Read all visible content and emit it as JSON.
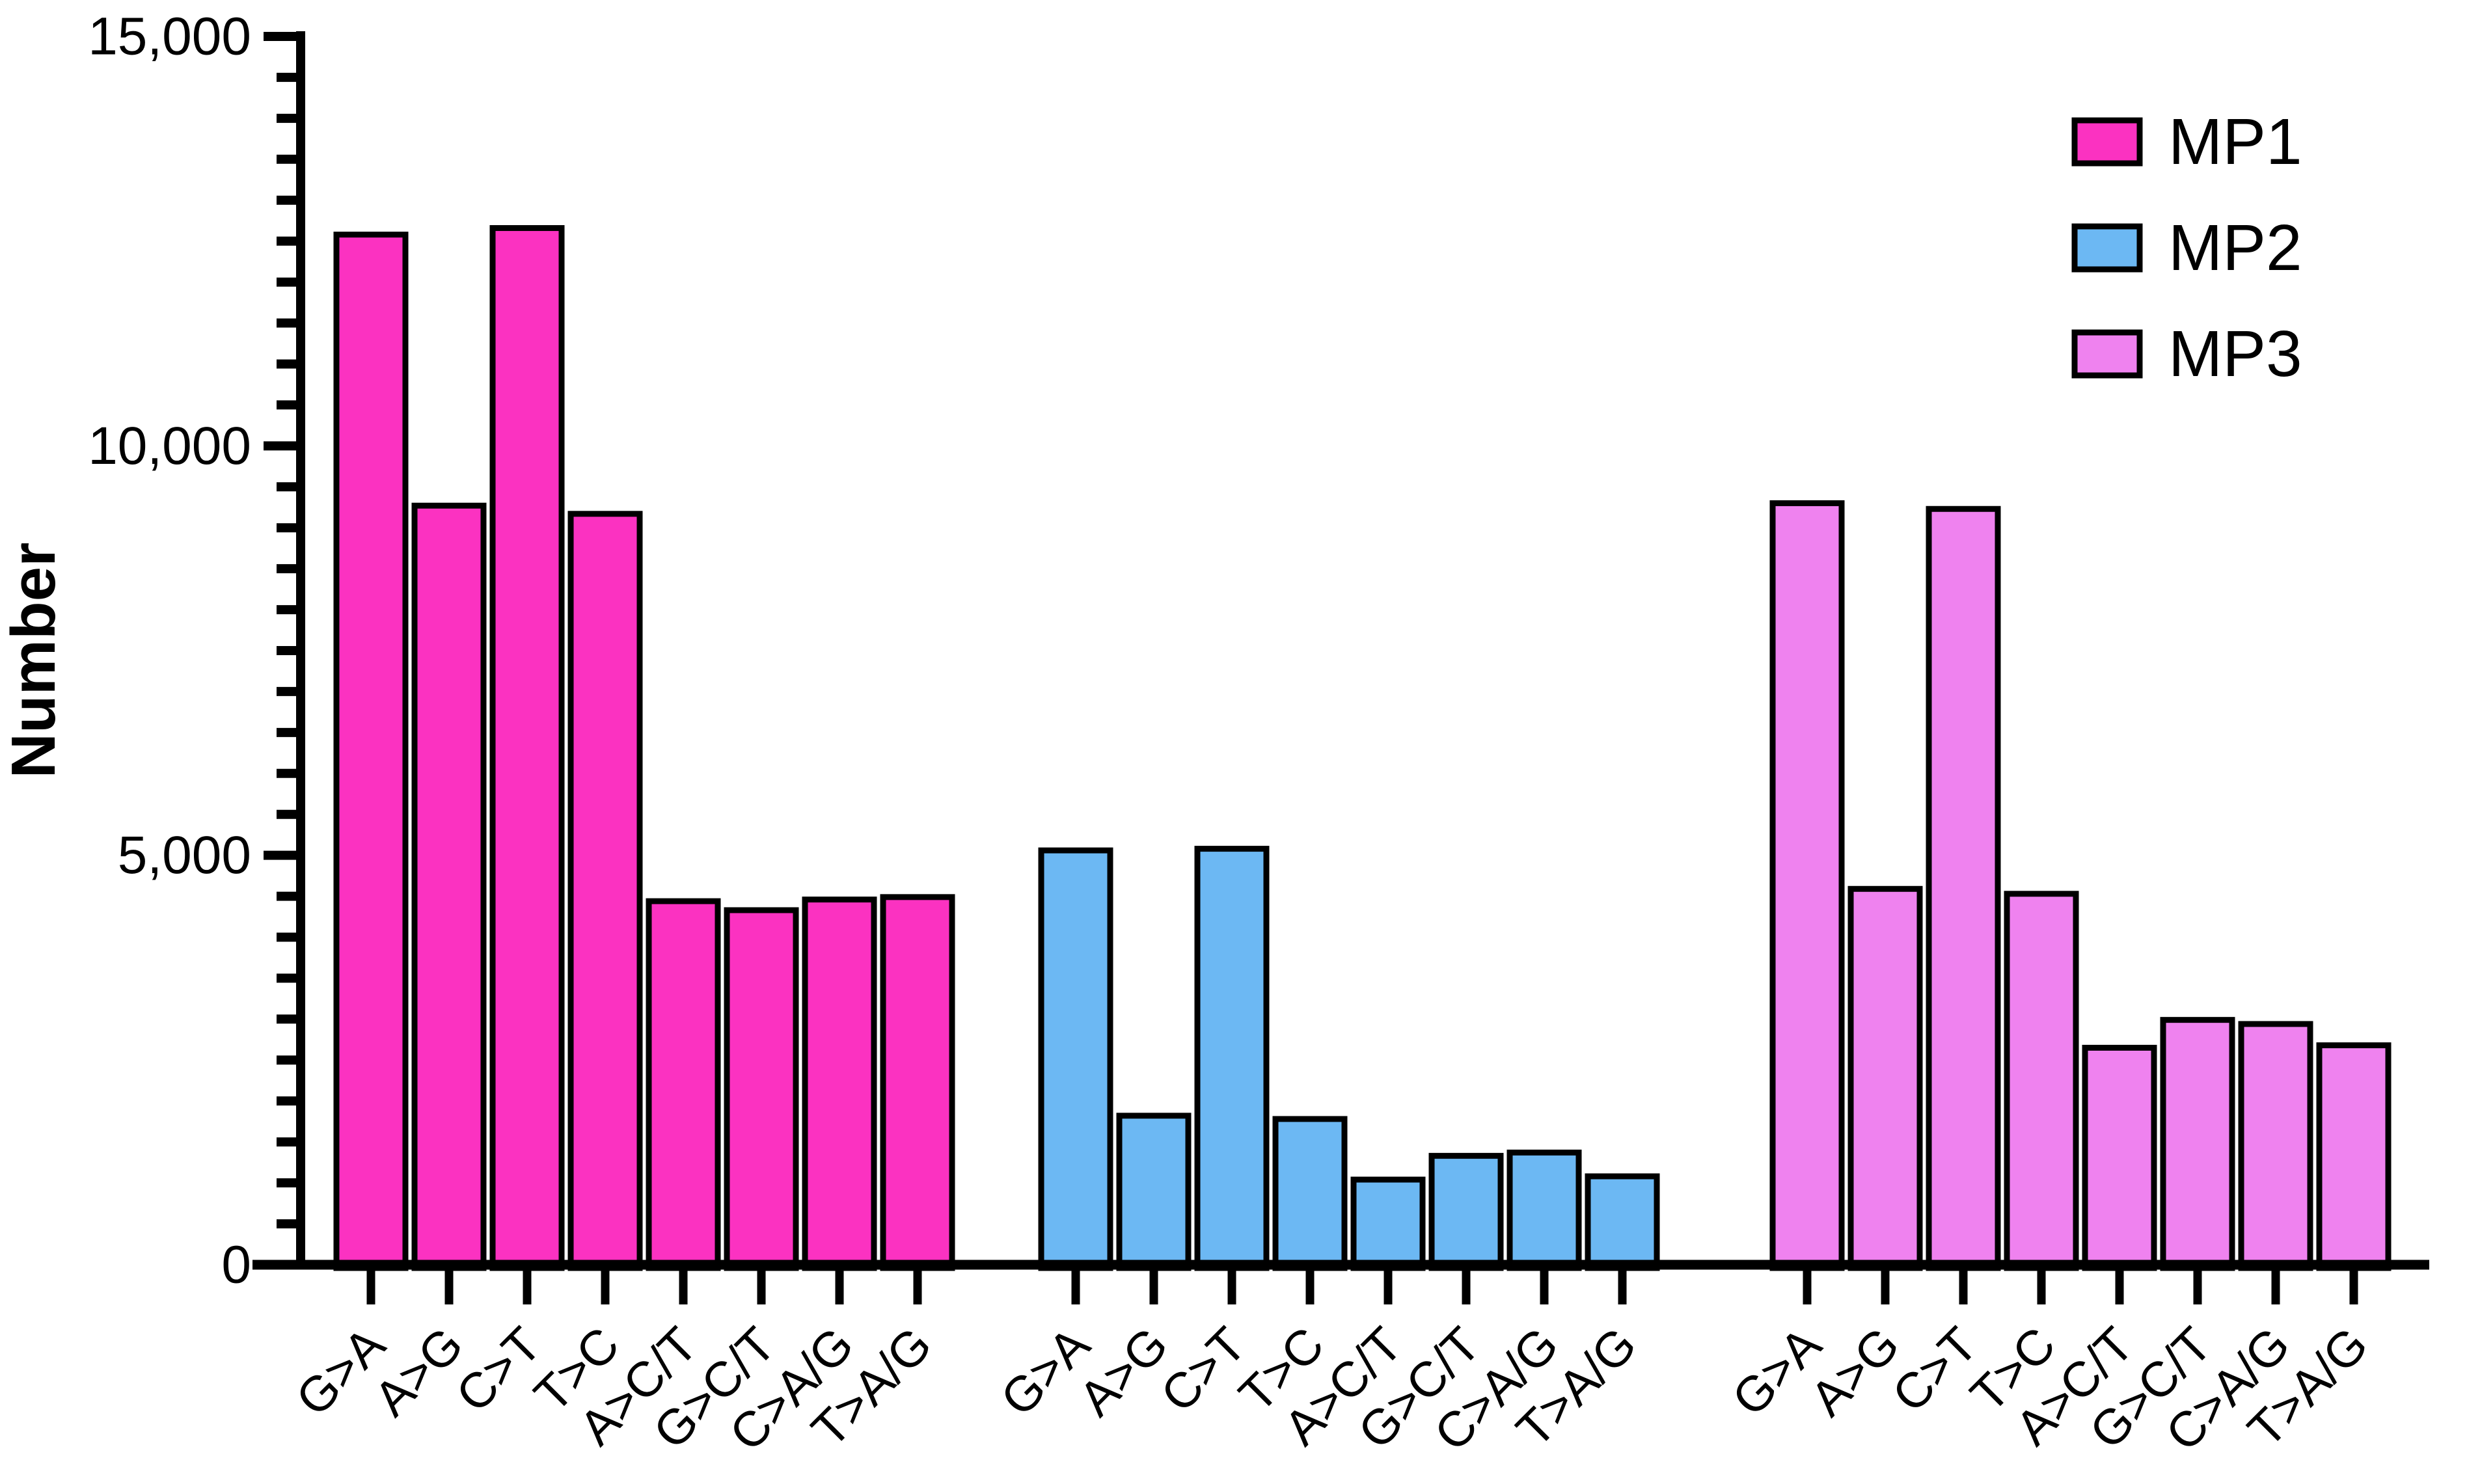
{
  "chart_data": {
    "type": "bar",
    "title": "",
    "xlabel": "",
    "ylabel": "Number",
    "background_color": "#FFFFFF",
    "axis_color": "#000000",
    "bar_outline_color": "#000000",
    "grid": false,
    "legend_position": "top-right",
    "layout_note": "three separate clusters, one per series; every cluster repeats all 8 categories on the x-axis",
    "categories": [
      "G>A",
      "A>G",
      "C>T",
      "T>C",
      "A>C/T",
      "G>C/T",
      "C>A/G",
      "T>A/G"
    ],
    "series": [
      {
        "name": "MP1",
        "color": "#FB32C1",
        "values": [
          12580,
          9270,
          12660,
          9170,
          4440,
          4330,
          4460,
          4490
        ]
      },
      {
        "name": "MP2",
        "color": "#6CB8F3",
        "values": [
          5060,
          1820,
          5080,
          1780,
          1040,
          1330,
          1370,
          1080
        ]
      },
      {
        "name": "MP3",
        "color": "#EF82EF",
        "values": [
          9300,
          4590,
          9230,
          4530,
          2650,
          2990,
          2940,
          2680
        ]
      }
    ],
    "ylim": [
      0,
      15000
    ],
    "y_major_ticks": [
      0,
      5000,
      10000,
      15000
    ],
    "y_tick_labels": [
      "0",
      "5,000",
      "10,000",
      "15,000"
    ],
    "y_minor_tick_interval": 500,
    "x_tick_marks": "one tick below the centre of every bar"
  }
}
